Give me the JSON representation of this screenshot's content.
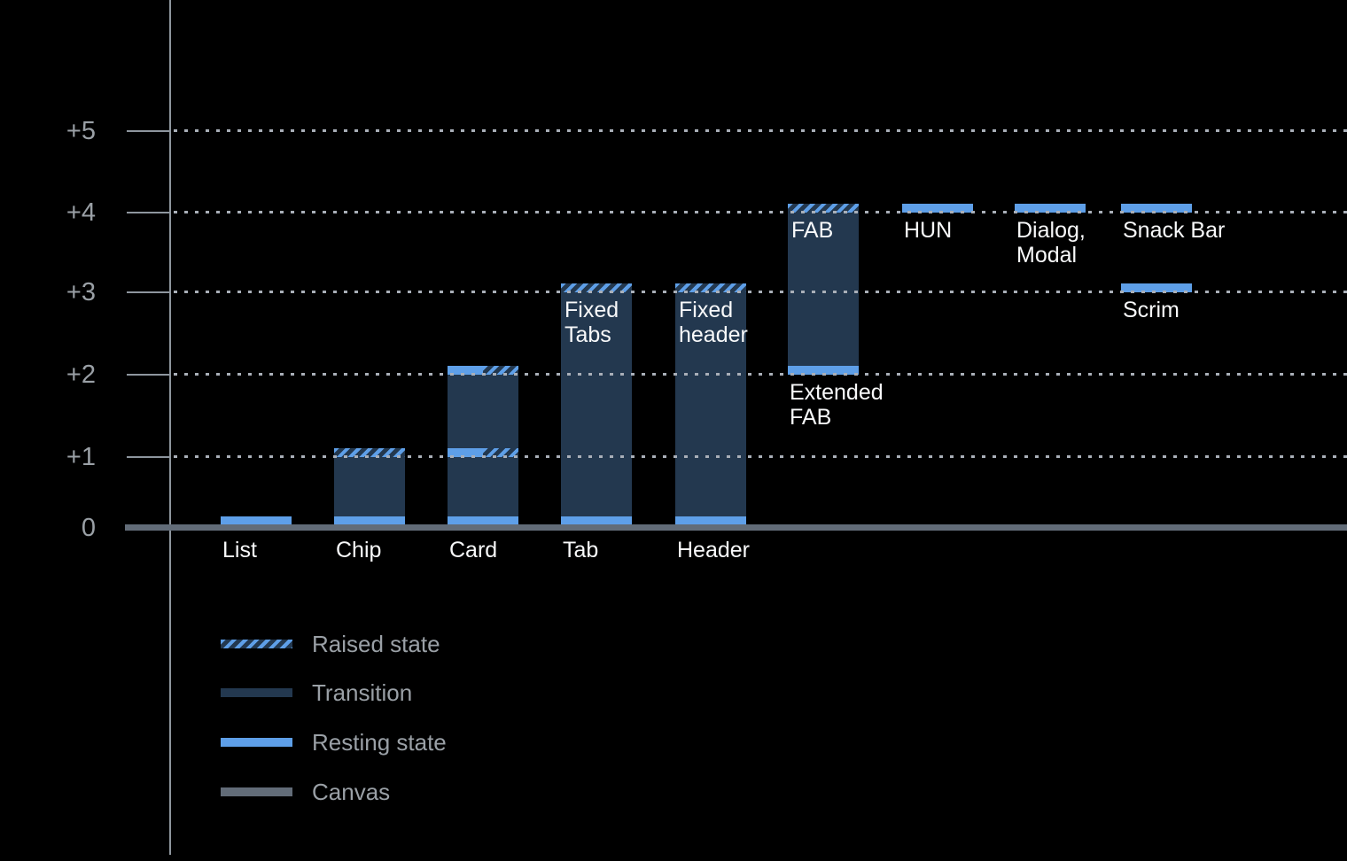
{
  "colors": {
    "background": "#000000",
    "resting": "#5E9FE8",
    "transition": "#23384F",
    "canvas": "#626C78",
    "axis": "#8E969E",
    "grid": "#A9AFB8",
    "axis_label": "#9AA0A6",
    "legend_label": "#9AA0A6",
    "bar_label": "#F8F9FA"
  },
  "chart_data": {
    "type": "bar",
    "description": "Material-style elevation diagram: UI components and their resting / raised elevation levels above the canvas",
    "y_axis": {
      "range": [
        0,
        5
      ],
      "grid": "dotted horizontal lines at +1 through +5",
      "ticks": [
        {
          "label": "+5",
          "level": 5
        },
        {
          "label": "+4",
          "level": 4
        },
        {
          "label": "+3",
          "level": 3
        },
        {
          "label": "+2",
          "level": 2
        },
        {
          "label": "+1",
          "level": 1
        },
        {
          "label": "0",
          "level": 0
        }
      ]
    },
    "components": [
      {
        "id": "list",
        "label": "List",
        "resting_level": 0,
        "segments": [
          {
            "t": "resting",
            "level": 0
          }
        ]
      },
      {
        "id": "chip",
        "label": "Chip",
        "resting_level": 0,
        "raised_level": 1,
        "segments": [
          {
            "t": "resting",
            "level": 0
          },
          {
            "t": "transition",
            "from": 0,
            "to": 1
          },
          {
            "t": "raised",
            "level": 1
          }
        ]
      },
      {
        "id": "card",
        "label": "Card",
        "resting_level": 0,
        "raised_level": 2,
        "segments": [
          {
            "t": "resting",
            "level": 0
          },
          {
            "t": "transition",
            "from": 0,
            "to": 2
          },
          {
            "t": "split",
            "level": 1
          },
          {
            "t": "split",
            "level": 2
          }
        ]
      },
      {
        "id": "tab",
        "label": "Tab",
        "resting_level": 0,
        "raised_level": 3,
        "inner_label": [
          "Fixed",
          "Tabs"
        ],
        "inner_label_level": 3,
        "segments": [
          {
            "t": "resting",
            "level": 0
          },
          {
            "t": "transition",
            "from": 0,
            "to": 3
          },
          {
            "t": "raised",
            "level": 3
          }
        ]
      },
      {
        "id": "header",
        "label": "Header",
        "resting_level": 0,
        "raised_level": 3,
        "inner_label": [
          "Fixed",
          "header"
        ],
        "inner_label_level": 3,
        "segments": [
          {
            "t": "resting",
            "level": 0
          },
          {
            "t": "transition",
            "from": 0,
            "to": 3
          },
          {
            "t": "raised",
            "level": 3
          }
        ]
      },
      {
        "id": "fab",
        "resting_level": 2,
        "raised_level": 4,
        "inner_label": [
          "FAB"
        ],
        "inner_label_level": 4,
        "below_label": {
          "lines": [
            "Extended",
            "FAB"
          ],
          "level": 2
        },
        "segments": [
          {
            "t": "resting",
            "level": 2
          },
          {
            "t": "transition",
            "from": 2,
            "to": 4
          },
          {
            "t": "raised",
            "level": 4
          }
        ]
      },
      {
        "id": "hun",
        "resting_level": 4,
        "below_label": {
          "lines": [
            "HUN"
          ],
          "level": 4
        },
        "segments": [
          {
            "t": "resting-float",
            "level": 4
          }
        ]
      },
      {
        "id": "dialog-modal",
        "resting_level": 4,
        "below_label": {
          "lines": [
            "Dialog,",
            "Modal"
          ],
          "level": 4
        },
        "segments": [
          {
            "t": "resting-float",
            "level": 4
          }
        ]
      },
      {
        "id": "snack-bar",
        "resting_level": 4,
        "below_label": {
          "lines": [
            "Snack Bar"
          ],
          "level": 4
        },
        "segments": [
          {
            "t": "resting-float",
            "level": 4
          }
        ]
      },
      {
        "id": "scrim",
        "resting_level": 3,
        "below_label": {
          "lines": [
            "Scrim"
          ],
          "level": 3
        },
        "segments": [
          {
            "t": "resting-float",
            "level": 3
          }
        ]
      }
    ],
    "legend": [
      {
        "label": "Raised state",
        "swatch": "hatch"
      },
      {
        "label": "Transition",
        "swatch": "trans"
      },
      {
        "label": "Resting state",
        "swatch": "rest"
      },
      {
        "label": "Canvas",
        "swatch": "canvas"
      }
    ]
  }
}
